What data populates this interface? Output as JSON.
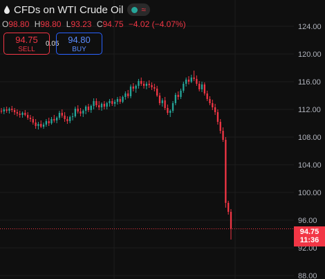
{
  "header": {
    "title": "CFDs on WTI Crude Oil",
    "status_icon": "market-status-icon",
    "wave_icon": "≈"
  },
  "ohlc": {
    "o_label": "O",
    "o_value": "98.80",
    "h_label": "H",
    "h_value": "98.80",
    "l_label": "L",
    "l_value": "93.23",
    "c_label": "C",
    "c_value": "94.75",
    "change": "−4.02 (−4.07%)"
  },
  "trade": {
    "sell_price": "94.75",
    "sell_label": "SELL",
    "spread": "0.05",
    "buy_price": "94.80",
    "buy_label": "BUY"
  },
  "last_price": {
    "price": "94.75",
    "countdown": "11:36"
  },
  "colors": {
    "up": "#26a69a",
    "down": "#f23645",
    "buy": "#2962ff",
    "background": "#0f0f0f"
  },
  "chart_data": {
    "type": "candlestick",
    "y_ticks": [
      "124.00",
      "120.00",
      "116.00",
      "112.00",
      "108.00",
      "104.00",
      "100.00",
      "96.00",
      "92.00",
      "88.00"
    ],
    "ylim": [
      88,
      126
    ],
    "last_price": 94.75,
    "candles": [
      [
        111.8,
        112.2,
        111.4,
        111.7
      ],
      [
        111.7,
        112.3,
        111.3,
        112.0
      ],
      [
        112.0,
        112.4,
        111.5,
        111.8
      ],
      [
        111.8,
        112.3,
        111.4,
        112.1
      ],
      [
        112.1,
        112.5,
        111.6,
        111.9
      ],
      [
        111.9,
        112.2,
        111.2,
        111.6
      ],
      [
        111.6,
        112.0,
        111.0,
        111.4
      ],
      [
        111.4,
        111.8,
        110.8,
        111.2
      ],
      [
        111.2,
        111.7,
        110.8,
        111.5
      ],
      [
        111.5,
        111.9,
        111.0,
        111.2
      ],
      [
        111.2,
        111.6,
        110.5,
        110.8
      ],
      [
        110.8,
        111.2,
        110.2,
        110.6
      ],
      [
        110.6,
        111.0,
        109.8,
        110.1
      ],
      [
        110.1,
        110.6,
        109.2,
        109.6
      ],
      [
        109.6,
        110.2,
        109.1,
        109.9
      ],
      [
        109.9,
        110.4,
        109.3,
        109.5
      ],
      [
        109.5,
        110.1,
        109.2,
        109.8
      ],
      [
        109.8,
        110.6,
        109.5,
        110.3
      ],
      [
        110.3,
        110.8,
        109.6,
        110.0
      ],
      [
        110.0,
        110.9,
        109.8,
        110.6
      ],
      [
        110.6,
        111.2,
        110.1,
        110.4
      ],
      [
        110.4,
        111.0,
        110.0,
        110.8
      ],
      [
        110.8,
        111.8,
        110.5,
        111.5
      ],
      [
        111.5,
        112.0,
        110.8,
        111.1
      ],
      [
        111.1,
        111.6,
        110.2,
        110.6
      ],
      [
        110.6,
        111.0,
        109.9,
        110.3
      ],
      [
        110.3,
        111.1,
        110.0,
        110.9
      ],
      [
        110.9,
        111.5,
        110.4,
        111.0
      ],
      [
        111.0,
        112.4,
        110.8,
        112.1
      ],
      [
        112.1,
        112.6,
        111.4,
        111.7
      ],
      [
        111.7,
        112.2,
        111.0,
        111.4
      ],
      [
        111.4,
        112.0,
        110.9,
        111.8
      ],
      [
        111.8,
        112.6,
        111.3,
        112.4
      ],
      [
        112.4,
        112.8,
        111.6,
        111.9
      ],
      [
        111.9,
        112.7,
        111.5,
        112.5
      ],
      [
        112.5,
        113.6,
        112.0,
        113.2
      ],
      [
        113.2,
        113.6,
        112.3,
        112.6
      ],
      [
        112.6,
        113.2,
        111.9,
        112.3
      ],
      [
        112.3,
        113.0,
        111.8,
        112.8
      ],
      [
        112.8,
        113.2,
        112.0,
        112.4
      ],
      [
        112.4,
        113.1,
        112.0,
        112.9
      ],
      [
        112.9,
        113.5,
        112.4,
        113.2
      ],
      [
        113.2,
        113.6,
        112.5,
        112.8
      ],
      [
        112.8,
        113.4,
        112.4,
        113.1
      ],
      [
        113.1,
        113.8,
        112.7,
        113.5
      ],
      [
        113.5,
        113.9,
        112.8,
        113.1
      ],
      [
        113.1,
        114.0,
        112.9,
        113.8
      ],
      [
        113.8,
        114.6,
        113.4,
        114.3
      ],
      [
        114.3,
        114.8,
        113.6,
        113.9
      ],
      [
        113.9,
        115.6,
        113.6,
        115.3
      ],
      [
        115.3,
        115.8,
        114.6,
        115.0
      ],
      [
        115.0,
        115.6,
        114.4,
        115.4
      ],
      [
        115.4,
        116.4,
        115.0,
        116.1
      ],
      [
        116.1,
        116.6,
        115.4,
        115.7
      ],
      [
        115.7,
        116.1,
        115.0,
        115.4
      ],
      [
        115.4,
        116.0,
        114.9,
        115.7
      ],
      [
        115.7,
        116.2,
        115.1,
        115.5
      ],
      [
        115.5,
        115.9,
        114.8,
        115.2
      ],
      [
        115.2,
        115.7,
        114.6,
        115.0
      ],
      [
        115.0,
        115.4,
        113.8,
        114.0
      ],
      [
        114.0,
        114.4,
        112.6,
        112.9
      ],
      [
        112.9,
        113.6,
        112.4,
        113.3
      ],
      [
        113.3,
        113.8,
        111.9,
        112.2
      ],
      [
        112.2,
        112.7,
        111.2,
        111.5
      ],
      [
        111.5,
        112.0,
        110.9,
        111.8
      ],
      [
        111.8,
        113.2,
        111.5,
        112.9
      ],
      [
        112.9,
        114.4,
        112.6,
        114.1
      ],
      [
        114.1,
        114.6,
        113.4,
        113.8
      ],
      [
        113.8,
        115.0,
        113.5,
        114.7
      ],
      [
        114.7,
        116.0,
        114.4,
        115.7
      ],
      [
        115.7,
        116.6,
        115.3,
        116.3
      ],
      [
        116.3,
        116.8,
        115.6,
        116.0
      ],
      [
        116.0,
        117.0,
        115.8,
        116.6
      ],
      [
        116.6,
        117.6,
        116.1,
        116.4
      ],
      [
        116.4,
        116.9,
        115.4,
        115.7
      ],
      [
        115.7,
        116.1,
        114.6,
        114.9
      ],
      [
        114.9,
        116.0,
        114.5,
        115.6
      ],
      [
        115.6,
        115.9,
        114.0,
        114.3
      ],
      [
        114.3,
        114.7,
        113.2,
        113.5
      ],
      [
        113.5,
        113.9,
        112.6,
        112.9
      ],
      [
        112.9,
        113.4,
        111.9,
        112.3
      ],
      [
        112.3,
        112.8,
        111.2,
        111.6
      ],
      [
        111.6,
        112.0,
        109.8,
        110.2
      ],
      [
        110.2,
        110.6,
        108.5,
        108.9
      ],
      [
        108.9,
        109.4,
        107.3,
        107.6
      ],
      [
        107.6,
        108.0,
        97.8,
        98.5
      ],
      [
        98.5,
        98.8,
        96.8,
        97.2
      ],
      [
        97.2,
        97.6,
        93.2,
        94.75
      ]
    ]
  }
}
